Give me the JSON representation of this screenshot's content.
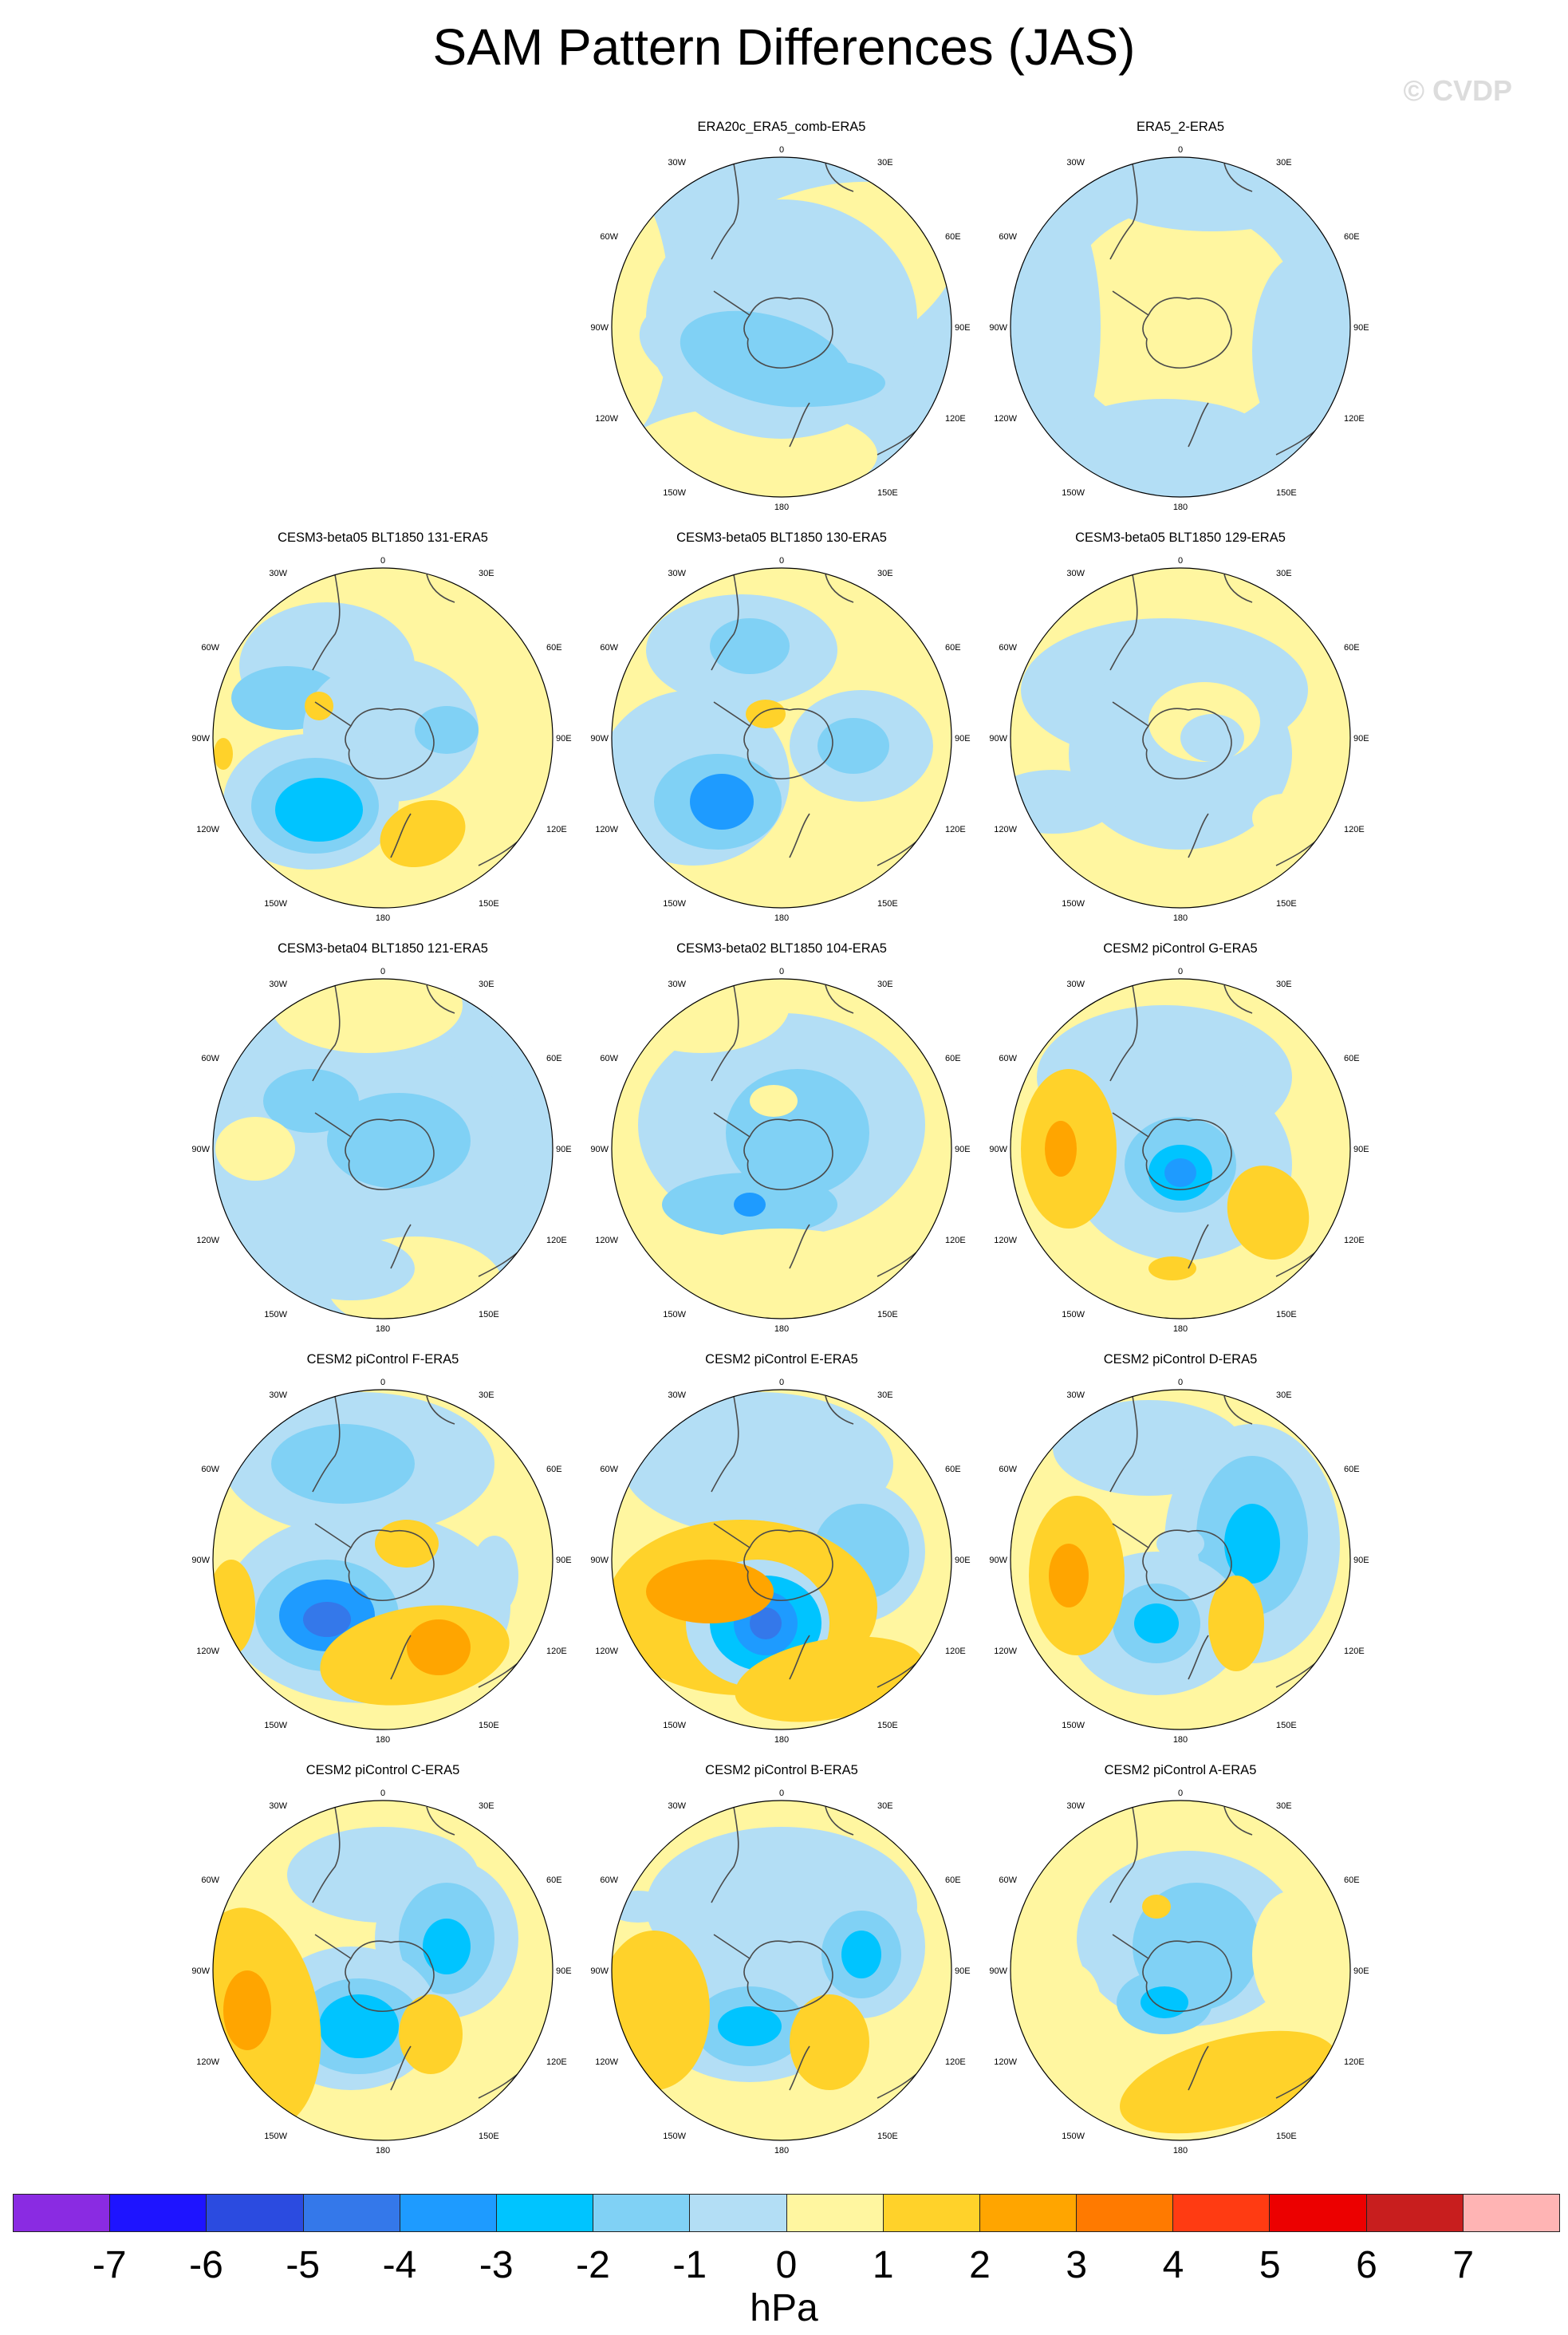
{
  "title": "SAM Pattern Differences (JAS)",
  "watermark": "© CVDP",
  "units": "hPa",
  "colors": {
    "levels": [
      "#8a2be2",
      "#1e14ff",
      "#2b4be0",
      "#3478ea",
      "#1e9bff",
      "#00c4ff",
      "#80d1f5",
      "#b3def5",
      "#fff6a0",
      "#ffd22a",
      "#ffa500",
      "#ff7a00",
      "#ff3b12",
      "#ec0000",
      "#c81e1e",
      "#ffb4b4"
    ],
    "coast": "#4a4a4a",
    "neg1": "#b3def5",
    "neg2": "#80d1f5",
    "neg3": "#00c4ff",
    "neg4": "#1e9bff",
    "neg5": "#3478ea",
    "pos0": "#fff6a0",
    "pos1": "#ffd22a",
    "pos2": "#ffa500"
  },
  "colorbar_ticks": [
    "-7",
    "-6",
    "-5",
    "-4",
    "-3",
    "-2",
    "-1",
    "0",
    "1",
    "2",
    "3",
    "4",
    "5",
    "6",
    "7"
  ],
  "lon_labels": {
    "top": "0",
    "bottom": "180",
    "upper_left": "30W",
    "upper_right": "30E",
    "mid_upper_left": "60W",
    "mid_upper_right": "60E",
    "left": "90W",
    "right": "90E",
    "mid_lower_left": "120W",
    "mid_lower_right": "120E",
    "lower_left": "150W",
    "lower_right": "150E"
  },
  "panels": [
    {
      "title": "ERA20c_ERA5_comb-ERA5",
      "base": "neg1",
      "pattern": "a"
    },
    {
      "title": "ERA5_2-ERA5",
      "base": "neg1",
      "pattern": "b"
    },
    {
      "title": "CESM3-beta05 BLT1850 131-ERA5",
      "base": "pos0",
      "pattern": "c"
    },
    {
      "title": "CESM3-beta05 BLT1850 130-ERA5",
      "base": "pos0",
      "pattern": "d"
    },
    {
      "title": "CESM3-beta05 BLT1850 129-ERA5",
      "base": "pos0",
      "pattern": "e"
    },
    {
      "title": "CESM3-beta04 BLT1850 121-ERA5",
      "base": "neg1",
      "pattern": "f"
    },
    {
      "title": "CESM3-beta02 BLT1850 104-ERA5",
      "base": "pos0",
      "pattern": "g"
    },
    {
      "title": "CESM2 piControl G-ERA5",
      "base": "pos0",
      "pattern": "h"
    },
    {
      "title": "CESM2 piControl F-ERA5",
      "base": "pos0",
      "pattern": "i"
    },
    {
      "title": "CESM2 piControl E-ERA5",
      "base": "pos0",
      "pattern": "j"
    },
    {
      "title": "CESM2 piControl D-ERA5",
      "base": "pos0",
      "pattern": "k"
    },
    {
      "title": "CESM2 piControl C-ERA5",
      "base": "pos0",
      "pattern": "l"
    },
    {
      "title": "CESM2 piControl B-ERA5",
      "base": "pos0",
      "pattern": "m"
    },
    {
      "title": "CESM2 piControl A-ERA5",
      "base": "pos0",
      "pattern": "n"
    }
  ]
}
